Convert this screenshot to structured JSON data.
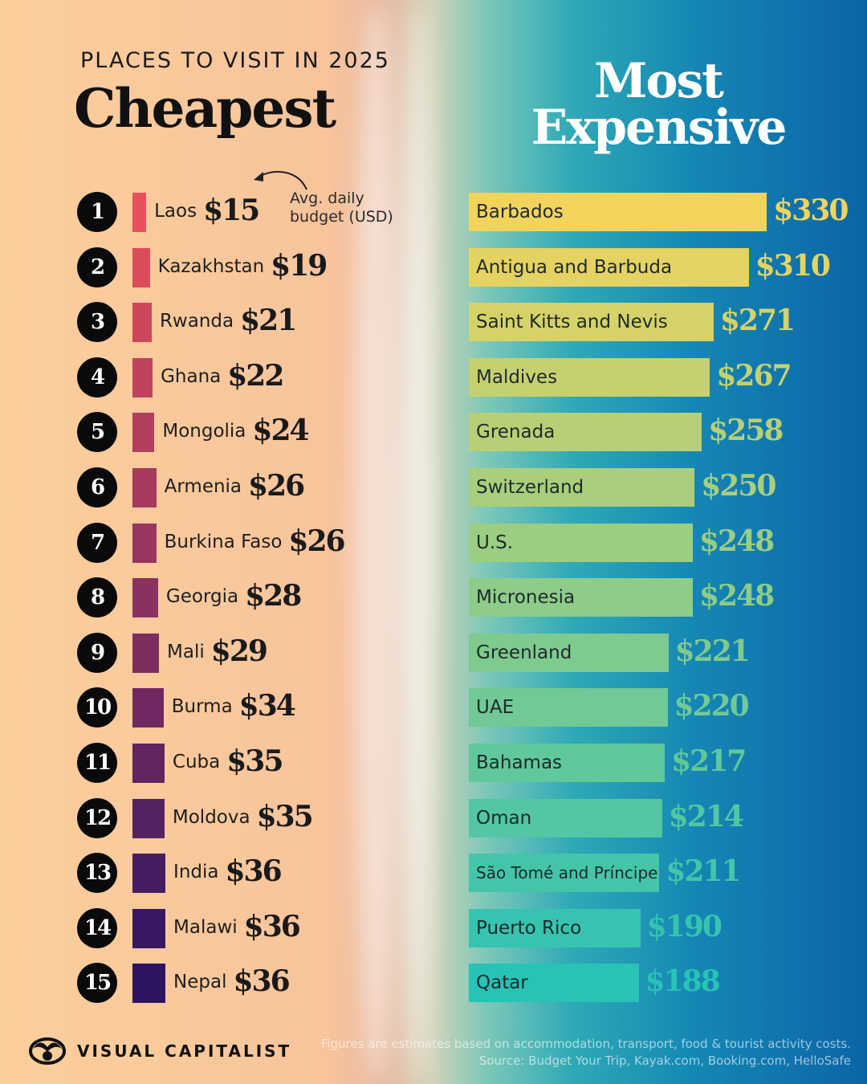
{
  "chart_data": [
    {
      "type": "bar",
      "title": "Cheapest",
      "subtitle": "PLACES TO VISIT IN 2025",
      "annotation": "Avg. daily budget (USD)",
      "categories": [
        "Laos",
        "Kazakhstan",
        "Rwanda",
        "Ghana",
        "Mongolia",
        "Armenia",
        "Burkina Faso",
        "Georgia",
        "Mali",
        "Burma",
        "Cuba",
        "Moldova",
        "India",
        "Malawi",
        "Nepal"
      ],
      "values": [
        15,
        19,
        21,
        22,
        24,
        26,
        26,
        28,
        29,
        34,
        35,
        35,
        36,
        36,
        36
      ],
      "ranks": [
        "1",
        "2",
        "3",
        "4",
        "5",
        "6",
        "7",
        "8",
        "9",
        "10",
        "11",
        "12",
        "13",
        "14",
        "15"
      ],
      "labels": [
        "$15",
        "$19",
        "$21",
        "$22",
        "$24",
        "$26",
        "$26",
        "$28",
        "$29",
        "$34",
        "$35",
        "$35",
        "$36",
        "$36",
        "$36"
      ],
      "color_range": [
        "#e8505b",
        "#2c1462"
      ]
    },
    {
      "type": "bar",
      "title": "Most Expensive",
      "categories": [
        "Barbados",
        "Antigua and Barbuda",
        "Saint Kitts and Nevis",
        "Maldives",
        "Grenada",
        "Switzerland",
        "U.S.",
        "Micronesia",
        "Greenland",
        "UAE",
        "Bahamas",
        "Oman",
        "São Tomé and Príncipe",
        "Puerto Rico",
        "Qatar"
      ],
      "values": [
        330,
        310,
        271,
        267,
        258,
        250,
        248,
        248,
        221,
        220,
        217,
        214,
        211,
        190,
        188
      ],
      "labels": [
        "$330",
        "$310",
        "$271",
        "$267",
        "$258",
        "$250",
        "$248",
        "$248",
        "$221",
        "$220",
        "$217",
        "$214",
        "$211",
        "$190",
        "$188"
      ],
      "color_range": [
        "#f2d45c",
        "#27c3b6"
      ]
    }
  ],
  "footer": {
    "brand": "VISUAL CAPITALIST",
    "note": "Figures are estimates based on accommodation, transport, food & tourist activity costs.",
    "source": "Source: Budget Your Trip, Kayak.com, Booking.com, HelloSafe"
  }
}
